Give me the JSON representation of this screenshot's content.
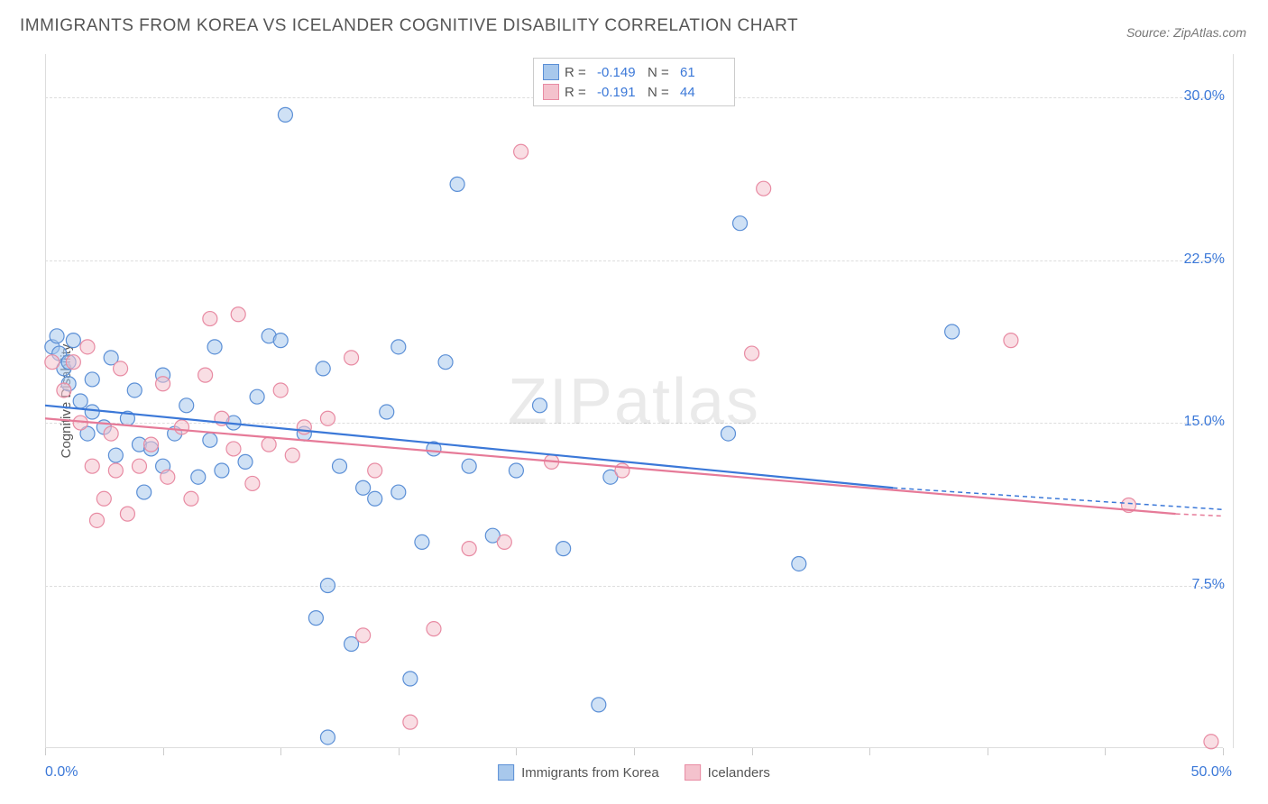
{
  "title": "IMMIGRANTS FROM KOREA VS ICELANDER COGNITIVE DISABILITY CORRELATION CHART",
  "source_label": "Source: ZipAtlas.com",
  "watermark": "ZIPatlas",
  "y_axis_label": "Cognitive Disability",
  "chart": {
    "type": "scatter",
    "xlim": [
      0,
      50
    ],
    "ylim": [
      0,
      32
    ],
    "x_min_label": "0.0%",
    "x_max_label": "50.0%",
    "x_ticks": [
      0,
      5,
      10,
      15,
      20,
      25,
      30,
      35,
      40,
      45,
      50
    ],
    "y_gridlines": [
      7.5,
      15.0,
      22.5,
      30.0
    ],
    "y_tick_labels": [
      "7.5%",
      "15.0%",
      "22.5%",
      "30.0%"
    ],
    "background_color": "#ffffff",
    "grid_color": "#dddddd",
    "marker_radius": 8,
    "marker_opacity": 0.55,
    "series": [
      {
        "name": "Immigrants from Korea",
        "fill_color": "#a8c8ec",
        "stroke_color": "#5b8fd6",
        "line_color": "#3b78d8",
        "R": "-0.149",
        "N": "61",
        "trend": {
          "x1": 0,
          "y1": 15.8,
          "x2": 36,
          "y2": 12.0,
          "x_dash_to": 50,
          "y_dash_to": 11.0
        },
        "points": [
          [
            0.3,
            18.5
          ],
          [
            0.5,
            19.0
          ],
          [
            0.6,
            18.2
          ],
          [
            0.8,
            17.5
          ],
          [
            1.0,
            17.8
          ],
          [
            1.0,
            16.8
          ],
          [
            1.2,
            18.8
          ],
          [
            1.5,
            16.0
          ],
          [
            1.8,
            14.5
          ],
          [
            2.0,
            15.5
          ],
          [
            2.0,
            17.0
          ],
          [
            2.5,
            14.8
          ],
          [
            2.8,
            18.0
          ],
          [
            3.0,
            13.5
          ],
          [
            3.5,
            15.2
          ],
          [
            3.8,
            16.5
          ],
          [
            4.0,
            14.0
          ],
          [
            4.2,
            11.8
          ],
          [
            4.5,
            13.8
          ],
          [
            5.0,
            17.2
          ],
          [
            5.0,
            13.0
          ],
          [
            5.5,
            14.5
          ],
          [
            6.0,
            15.8
          ],
          [
            6.5,
            12.5
          ],
          [
            7.0,
            14.2
          ],
          [
            7.2,
            18.5
          ],
          [
            7.5,
            12.8
          ],
          [
            8.0,
            15.0
          ],
          [
            8.5,
            13.2
          ],
          [
            9.0,
            16.2
          ],
          [
            9.5,
            19.0
          ],
          [
            10.0,
            18.8
          ],
          [
            10.2,
            29.2
          ],
          [
            11.0,
            14.5
          ],
          [
            11.5,
            6.0
          ],
          [
            11.8,
            17.5
          ],
          [
            12.0,
            7.5
          ],
          [
            12.0,
            0.5
          ],
          [
            12.5,
            13.0
          ],
          [
            13.0,
            4.8
          ],
          [
            13.5,
            12.0
          ],
          [
            14.0,
            11.5
          ],
          [
            14.5,
            15.5
          ],
          [
            15.0,
            11.8
          ],
          [
            15.0,
            18.5
          ],
          [
            15.5,
            3.2
          ],
          [
            16.0,
            9.5
          ],
          [
            16.5,
            13.8
          ],
          [
            17.0,
            17.8
          ],
          [
            17.5,
            26.0
          ],
          [
            18.0,
            13.0
          ],
          [
            19.0,
            9.8
          ],
          [
            20.0,
            12.8
          ],
          [
            21.0,
            15.8
          ],
          [
            22.0,
            9.2
          ],
          [
            23.5,
            2.0
          ],
          [
            24.0,
            12.5
          ],
          [
            29.0,
            14.5
          ],
          [
            29.5,
            24.2
          ],
          [
            32.0,
            8.5
          ],
          [
            38.5,
            19.2
          ]
        ]
      },
      {
        "name": "Icelanders",
        "fill_color": "#f4c2cd",
        "stroke_color": "#e88ba3",
        "line_color": "#e67a98",
        "R": "-0.191",
        "N": "44",
        "trend": {
          "x1": 0,
          "y1": 15.2,
          "x2": 48,
          "y2": 10.8,
          "x_dash_to": 50,
          "y_dash_to": 10.7
        },
        "points": [
          [
            0.3,
            17.8
          ],
          [
            0.8,
            16.5
          ],
          [
            1.2,
            17.8
          ],
          [
            1.5,
            15.0
          ],
          [
            1.8,
            18.5
          ],
          [
            2.0,
            13.0
          ],
          [
            2.2,
            10.5
          ],
          [
            2.5,
            11.5
          ],
          [
            2.8,
            14.5
          ],
          [
            3.0,
            12.8
          ],
          [
            3.2,
            17.5
          ],
          [
            3.5,
            10.8
          ],
          [
            4.0,
            13.0
          ],
          [
            4.5,
            14.0
          ],
          [
            5.0,
            16.8
          ],
          [
            5.2,
            12.5
          ],
          [
            5.8,
            14.8
          ],
          [
            6.2,
            11.5
          ],
          [
            6.8,
            17.2
          ],
          [
            7.0,
            19.8
          ],
          [
            7.5,
            15.2
          ],
          [
            8.0,
            13.8
          ],
          [
            8.2,
            20.0
          ],
          [
            8.8,
            12.2
          ],
          [
            9.5,
            14.0
          ],
          [
            10.0,
            16.5
          ],
          [
            10.5,
            13.5
          ],
          [
            11.0,
            14.8
          ],
          [
            12.0,
            15.2
          ],
          [
            13.0,
            18.0
          ],
          [
            13.5,
            5.2
          ],
          [
            14.0,
            12.8
          ],
          [
            15.5,
            1.2
          ],
          [
            16.5,
            5.5
          ],
          [
            18.0,
            9.2
          ],
          [
            19.5,
            9.5
          ],
          [
            20.2,
            27.5
          ],
          [
            21.5,
            13.2
          ],
          [
            24.5,
            12.8
          ],
          [
            30.0,
            18.2
          ],
          [
            30.5,
            25.8
          ],
          [
            41.0,
            18.8
          ],
          [
            46.0,
            11.2
          ],
          [
            49.5,
            0.3
          ]
        ]
      }
    ]
  },
  "legend_bottom": [
    {
      "label": "Immigrants from Korea",
      "fill": "#a8c8ec",
      "stroke": "#5b8fd6"
    },
    {
      "label": "Icelanders",
      "fill": "#f4c2cd",
      "stroke": "#e88ba3"
    }
  ]
}
